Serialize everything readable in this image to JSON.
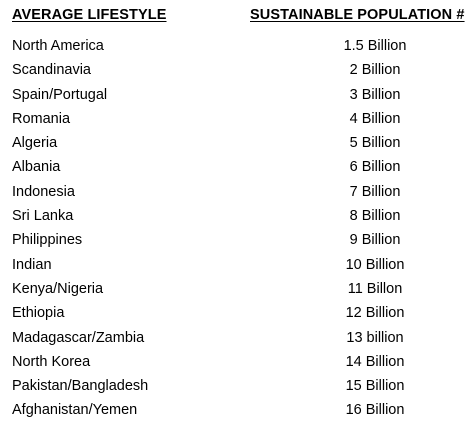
{
  "headers": {
    "lifestyle": "AVERAGE LIFESTYLE",
    "population": "SUSTAINABLE POPULATION #"
  },
  "rows": [
    {
      "lifestyle": "North America",
      "population": "1.5 Billion"
    },
    {
      "lifestyle": "Scandinavia",
      "population": "2 Billion"
    },
    {
      "lifestyle": "Spain/Portugal",
      "population": "3 Billion"
    },
    {
      "lifestyle": "Romania",
      "population": "4 Billion"
    },
    {
      "lifestyle": "Algeria",
      "population": "5 Billion"
    },
    {
      "lifestyle": "Albania",
      "population": "6 Billion"
    },
    {
      "lifestyle": "Indonesia",
      "population": "7 Billion"
    },
    {
      "lifestyle": "Sri Lanka",
      "population": "8 Billion"
    },
    {
      "lifestyle": "Philippines",
      "population": "9 Billion"
    },
    {
      "lifestyle": "Indian",
      "population": "10 Billion"
    },
    {
      "lifestyle": "Kenya/Nigeria",
      "population": "11 Billon"
    },
    {
      "lifestyle": "Ethiopia",
      "population": "12 Billion"
    },
    {
      "lifestyle": "Madagascar/Zambia",
      "population": "13 billion"
    },
    {
      "lifestyle": "North Korea",
      "population": "14 Billion"
    },
    {
      "lifestyle": "Pakistan/Bangladesh",
      "population": "15 Billion"
    },
    {
      "lifestyle": "Afghanistan/Yemen",
      "population": "16 Billion"
    }
  ]
}
